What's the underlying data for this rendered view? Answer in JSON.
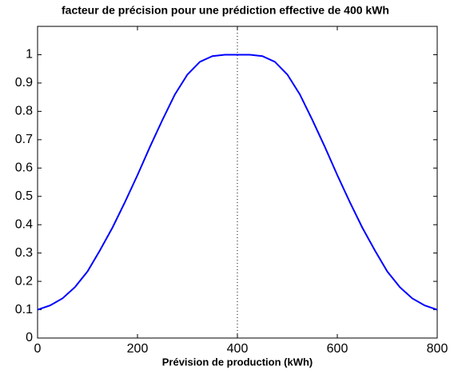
{
  "chart_data": {
    "type": "line",
    "title": "facteur de précision pour une prédiction effective de 400 kWh",
    "x_label": "Prévision de production (kWh)",
    "x": [
      0,
      25,
      50,
      75,
      100,
      125,
      150,
      175,
      200,
      225,
      250,
      275,
      300,
      325,
      350,
      375,
      400,
      425,
      450,
      475,
      500,
      525,
      550,
      575,
      600,
      625,
      650,
      675,
      700,
      725,
      750,
      775,
      800
    ],
    "values": [
      0.1,
      0.115,
      0.14,
      0.18,
      0.235,
      0.31,
      0.39,
      0.48,
      0.575,
      0.675,
      0.77,
      0.86,
      0.93,
      0.975,
      0.995,
      1,
      1,
      1,
      0.995,
      0.975,
      0.93,
      0.86,
      0.77,
      0.675,
      0.575,
      0.48,
      0.39,
      0.31,
      0.235,
      0.18,
      0.14,
      0.115,
      0.1
    ],
    "color": "#0000ff",
    "reference_x": 400,
    "xlim": [
      0,
      800
    ],
    "xticks": [
      0,
      200,
      400,
      600,
      800
    ],
    "ylim": [
      0,
      1.1
    ],
    "yticks": [
      0,
      0.1,
      0.2,
      0.3,
      0.4,
      0.5,
      0.6,
      0.7,
      0.8,
      0.9,
      1
    ],
    "grid": false
  }
}
